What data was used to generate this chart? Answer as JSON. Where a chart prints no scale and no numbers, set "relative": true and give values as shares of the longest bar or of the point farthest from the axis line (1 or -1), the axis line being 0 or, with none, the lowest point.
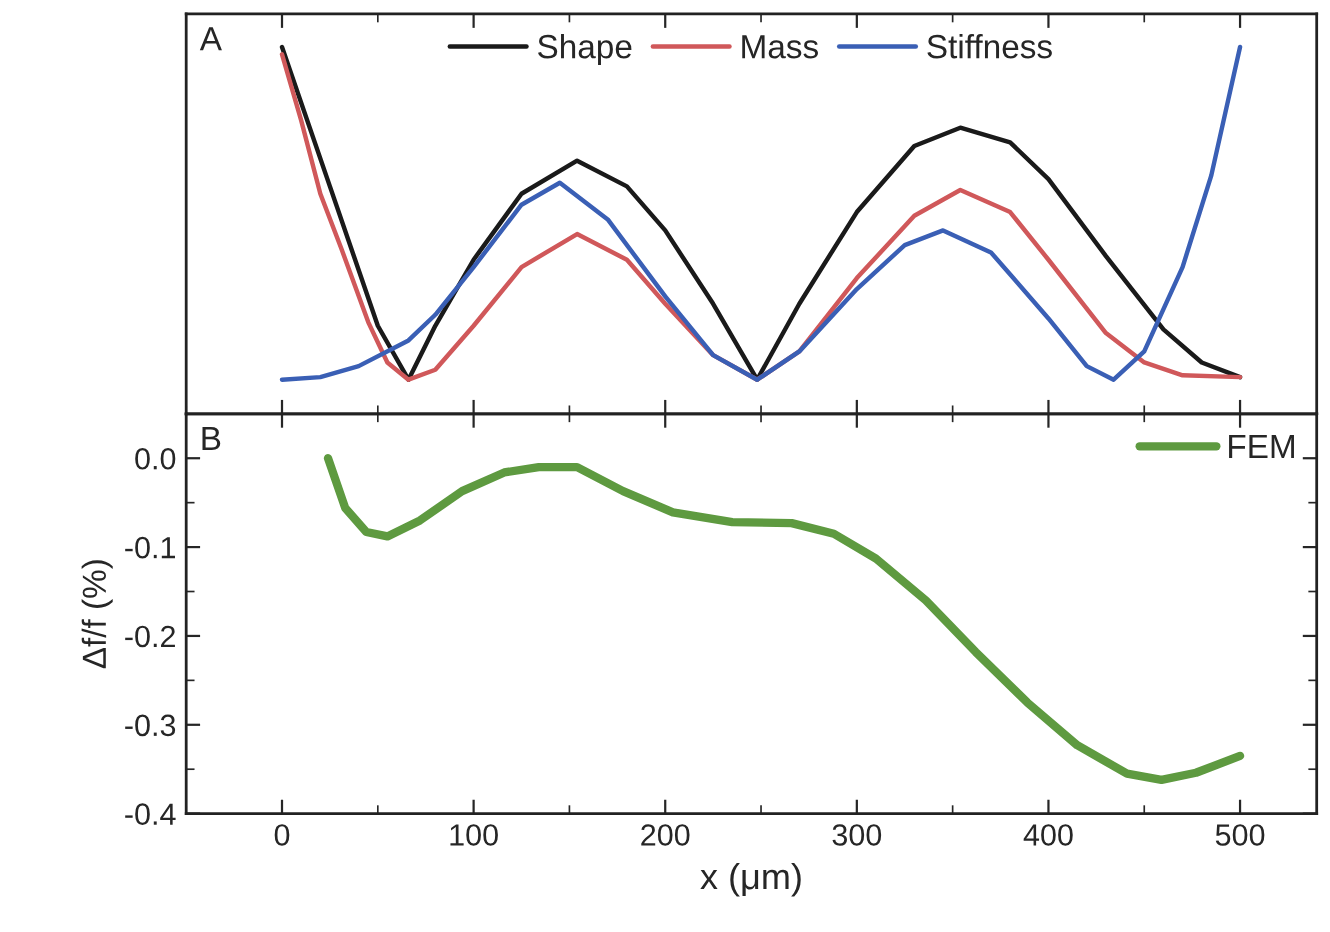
{
  "chart_data": [
    {
      "type": "line",
      "relative": true,
      "xlim": [
        -50,
        540
      ],
      "xticks": [
        0,
        100,
        200,
        300,
        400,
        500
      ],
      "tick_labels": false,
      "legend": "top",
      "grid": false,
      "annotations": [
        "A"
      ],
      "series": [
        {
          "name": "Shape",
          "color": "#1a1a1a",
          "x": [
            0,
            25,
            50,
            66,
            80,
            100,
            125,
            154,
            180,
            200,
            225,
            248,
            270,
            300,
            330,
            354,
            380,
            400,
            430,
            460,
            480,
            500
          ],
          "values": [
            1.0,
            0.62,
            0.24,
            0.093,
            0.24,
            0.42,
            0.6,
            0.69,
            0.62,
            0.5,
            0.3,
            0.093,
            0.3,
            0.55,
            0.73,
            0.78,
            0.74,
            0.64,
            0.43,
            0.23,
            0.14,
            0.1
          ]
        },
        {
          "name": "Mass",
          "color": "#d0585a",
          "x": [
            0,
            10,
            20,
            31,
            45,
            55,
            66,
            80,
            100,
            125,
            154,
            180,
            200,
            225,
            248,
            270,
            300,
            330,
            354,
            380,
            400,
            430,
            450,
            470,
            500
          ],
          "values": [
            0.98,
            0.8,
            0.6,
            0.45,
            0.25,
            0.14,
            0.093,
            0.12,
            0.24,
            0.4,
            0.49,
            0.42,
            0.3,
            0.16,
            0.093,
            0.17,
            0.37,
            0.54,
            0.61,
            0.55,
            0.42,
            0.22,
            0.14,
            0.105,
            0.1
          ]
        },
        {
          "name": "Stiffness",
          "color": "#3a5fb5",
          "x": [
            0,
            20,
            40,
            66,
            80,
            100,
            125,
            145,
            170,
            200,
            225,
            248,
            270,
            300,
            325,
            345,
            370,
            400,
            420,
            434,
            450,
            470,
            485,
            500
          ],
          "values": [
            0.093,
            0.1,
            0.13,
            0.2,
            0.27,
            0.4,
            0.57,
            0.63,
            0.53,
            0.32,
            0.16,
            0.093,
            0.17,
            0.34,
            0.46,
            0.5,
            0.44,
            0.26,
            0.13,
            0.093,
            0.17,
            0.4,
            0.65,
            1.0
          ]
        }
      ]
    },
    {
      "type": "line",
      "xlim": [
        -50,
        540
      ],
      "ylim": [
        -0.4,
        0.05
      ],
      "xticks": [
        0,
        100,
        200,
        300,
        400,
        500
      ],
      "yticks": [
        {
          "value": 0.0,
          "label": "0.0"
        },
        {
          "value": -0.1,
          "label": "-0.1"
        },
        {
          "value": -0.2,
          "label": "-0.2"
        },
        {
          "value": -0.3,
          "label": "-0.3"
        },
        {
          "value": -0.4,
          "label": "-0.4"
        }
      ],
      "xlabel": "x (μm)",
      "ylabel": "Δf/f (%)",
      "legend": "top right",
      "grid": false,
      "annotations": [
        "B"
      ],
      "series": [
        {
          "name": "FEM",
          "color": "#5e9a40",
          "x": [
            24,
            33,
            44,
            55,
            72,
            94,
            116,
            134,
            154,
            178,
            204,
            235,
            266,
            288,
            310,
            336,
            362,
            389,
            415,
            441,
            459,
            477,
            500
          ],
          "values": [
            0.0,
            -0.056,
            -0.083,
            -0.088,
            -0.07,
            -0.037,
            -0.016,
            -0.01,
            -0.01,
            -0.037,
            -0.061,
            -0.072,
            -0.073,
            -0.085,
            -0.113,
            -0.16,
            -0.218,
            -0.275,
            -0.323,
            -0.355,
            -0.362,
            -0.354,
            -0.335
          ]
        }
      ]
    }
  ]
}
